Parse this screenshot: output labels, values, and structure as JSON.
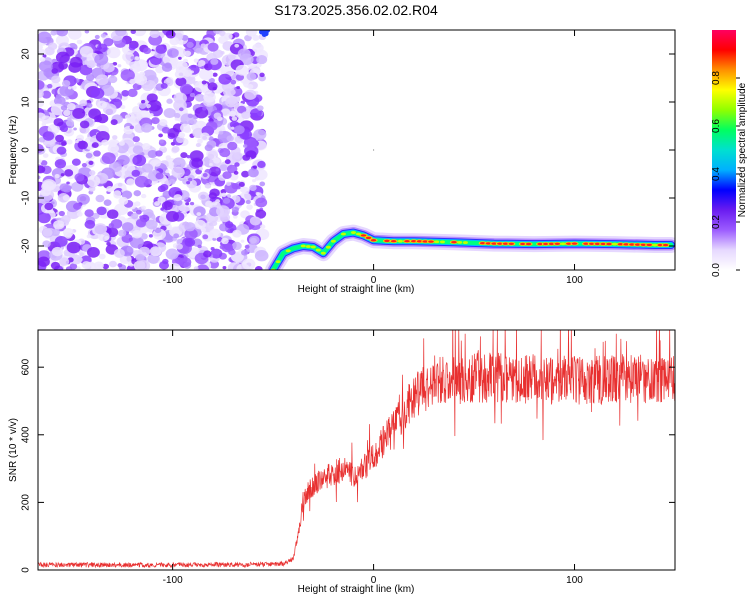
{
  "title": "S173.2025.356.02.02.R04",
  "chart_data": [
    {
      "type": "heatmap",
      "xlabel": "Height of straight line (km)",
      "ylabel": "Frequency (Hz)",
      "xlim": [
        -167,
        150
      ],
      "ylim": [
        -25,
        25
      ],
      "xticks": [
        -100,
        0,
        100
      ],
      "yticks": [
        -20,
        -10,
        0,
        10,
        20
      ],
      "grid": false,
      "noise_region_x": [
        -167,
        -50
      ],
      "signal_trace": {
        "x": [
          -50,
          -45,
          -40,
          -35,
          -30,
          -25,
          -20,
          -15,
          -10,
          -5,
          0,
          10,
          20,
          40,
          60,
          80,
          100,
          120,
          140,
          148
        ],
        "y": [
          -25,
          -21.5,
          -20.5,
          -20,
          -20.2,
          -21.5,
          -19,
          -17.5,
          -17.2,
          -17.8,
          -18.8,
          -19,
          -19,
          -19.2,
          -19.5,
          -19.6,
          -19.5,
          -19.6,
          -19.8,
          -19.8
        ]
      },
      "colorbar": {
        "label": "Normalized spectral amplitude",
        "range": [
          0,
          1
        ],
        "ticks": [
          "0.0",
          "0.2",
          "0.4",
          "0.6",
          "0.8"
        ],
        "colors": [
          "#ffffff",
          "#e6d8ff",
          "#9c5cff",
          "#6a1cf0",
          "#0000ff",
          "#00b0ff",
          "#00e0d0",
          "#00ff60",
          "#90ff00",
          "#ffff00",
          "#ff9000",
          "#ff0000",
          "#ff0060"
        ]
      }
    },
    {
      "type": "line",
      "xlabel": "Height of straight line (km)",
      "ylabel": "SNR (10 * v/v)",
      "xlim": [
        -167,
        150
      ],
      "ylim": [
        0,
        710
      ],
      "xticks": [
        -100,
        0,
        100
      ],
      "yticks": [
        0,
        200,
        400,
        600
      ],
      "grid": false,
      "series": [
        {
          "color": "#e83030",
          "x": [
            -167,
            -140,
            -100,
            -60,
            -45,
            -40,
            -37,
            -35,
            -33,
            -30,
            -25,
            -20,
            -15,
            -10,
            -5,
            0,
            5,
            10,
            15,
            20,
            25,
            30,
            40,
            60,
            80,
            100,
            120,
            140,
            150
          ],
          "y": [
            15,
            15,
            15,
            16,
            18,
            35,
            120,
            200,
            230,
            250,
            270,
            285,
            300,
            280,
            300,
            340,
            380,
            420,
            470,
            510,
            540,
            555,
            565,
            570,
            565,
            560,
            565,
            565,
            560
          ]
        }
      ]
    }
  ]
}
